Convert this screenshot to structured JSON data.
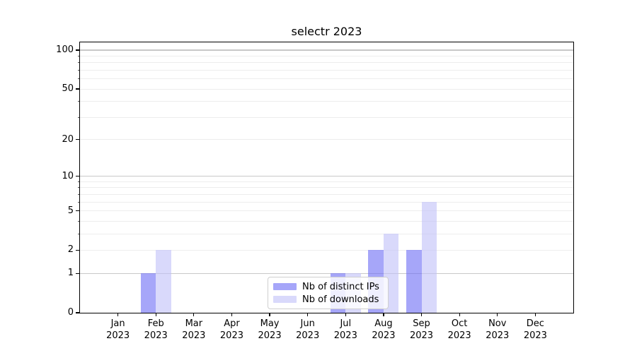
{
  "chart_data": {
    "type": "bar",
    "title": "selectr 2023",
    "categories": [
      {
        "month": "Jan",
        "year": "2023"
      },
      {
        "month": "Feb",
        "year": "2023"
      },
      {
        "month": "Mar",
        "year": "2023"
      },
      {
        "month": "Apr",
        "year": "2023"
      },
      {
        "month": "May",
        "year": "2023"
      },
      {
        "month": "Jun",
        "year": "2023"
      },
      {
        "month": "Jul",
        "year": "2023"
      },
      {
        "month": "Aug",
        "year": "2023"
      },
      {
        "month": "Sep",
        "year": "2023"
      },
      {
        "month": "Oct",
        "year": "2023"
      },
      {
        "month": "Nov",
        "year": "2023"
      },
      {
        "month": "Dec",
        "year": "2023"
      }
    ],
    "series": [
      {
        "name": "Nb of distinct IPs",
        "color": "#6a6af5",
        "fill_alpha": 0.6,
        "rendered_color": "#aaaaf8",
        "values": [
          0,
          1,
          0,
          0,
          0,
          0,
          1,
          2,
          2,
          0,
          0,
          0
        ]
      },
      {
        "name": "Nb of downloads",
        "color": "#c0c0f8",
        "fill_alpha": 0.6,
        "rendered_color": "#d9d9f8",
        "values": [
          0,
          2,
          0,
          0,
          0,
          0,
          1,
          3,
          6,
          0,
          0,
          0
        ]
      }
    ],
    "y_axis": {
      "scale": "log1p",
      "tick_labels": [
        0,
        1,
        2,
        5,
        10,
        20,
        50,
        100
      ],
      "major_grid_values": [
        1,
        10,
        100
      ],
      "minor_grid_values": [
        2,
        3,
        4,
        5,
        6,
        7,
        8,
        9,
        20,
        30,
        40,
        50,
        60,
        70,
        80,
        90
      ],
      "ylim": [
        0,
        114.8
      ]
    },
    "legend": {
      "position": "lower center",
      "entries": [
        "Nb of distinct IPs",
        "Nb of downloads"
      ]
    },
    "grid": {
      "major_color": "#c8c8c8",
      "minor_color": "#ededed"
    }
  }
}
